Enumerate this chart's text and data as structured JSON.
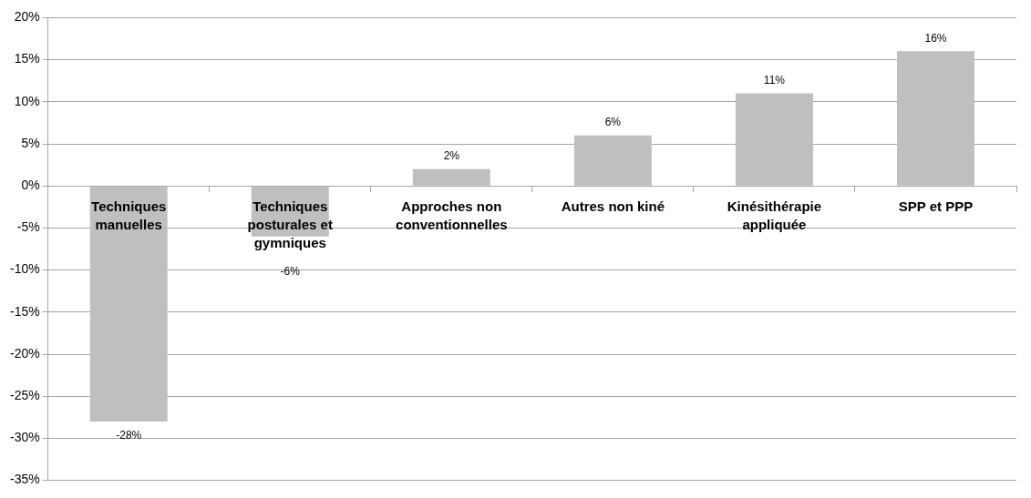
{
  "chart_data": {
    "type": "bar",
    "categories": [
      "Techniques manuelles",
      "Techniques posturales et gymniques",
      "Approches non conventionnelles",
      "Autres non kiné",
      "Kinésithérapie appliquée",
      "SPP et PPP"
    ],
    "values": [
      -28,
      -6,
      2,
      6,
      11,
      16
    ],
    "value_labels": [
      "-28%",
      "-6%",
      "2%",
      "6%",
      "11%",
      "16%"
    ],
    "color": "#bfbfbf",
    "grid": "y",
    "legend": false,
    "ylim": [
      -35,
      20
    ],
    "yticks": [
      {
        "value": -35,
        "label": "-35%"
      },
      {
        "value": -30,
        "label": "-30%"
      },
      {
        "value": -25,
        "label": "-25%"
      },
      {
        "value": -20,
        "label": "-20%"
      },
      {
        "value": -15,
        "label": "-15%"
      },
      {
        "value": -10,
        "label": "-10%"
      },
      {
        "value": -5,
        "label": "-5%"
      },
      {
        "value": 0,
        "label": "0%"
      },
      {
        "value": 5,
        "label": "5%"
      },
      {
        "value": 10,
        "label": "10%"
      },
      {
        "value": 15,
        "label": "15%"
      },
      {
        "value": 20,
        "label": "20%"
      }
    ]
  }
}
